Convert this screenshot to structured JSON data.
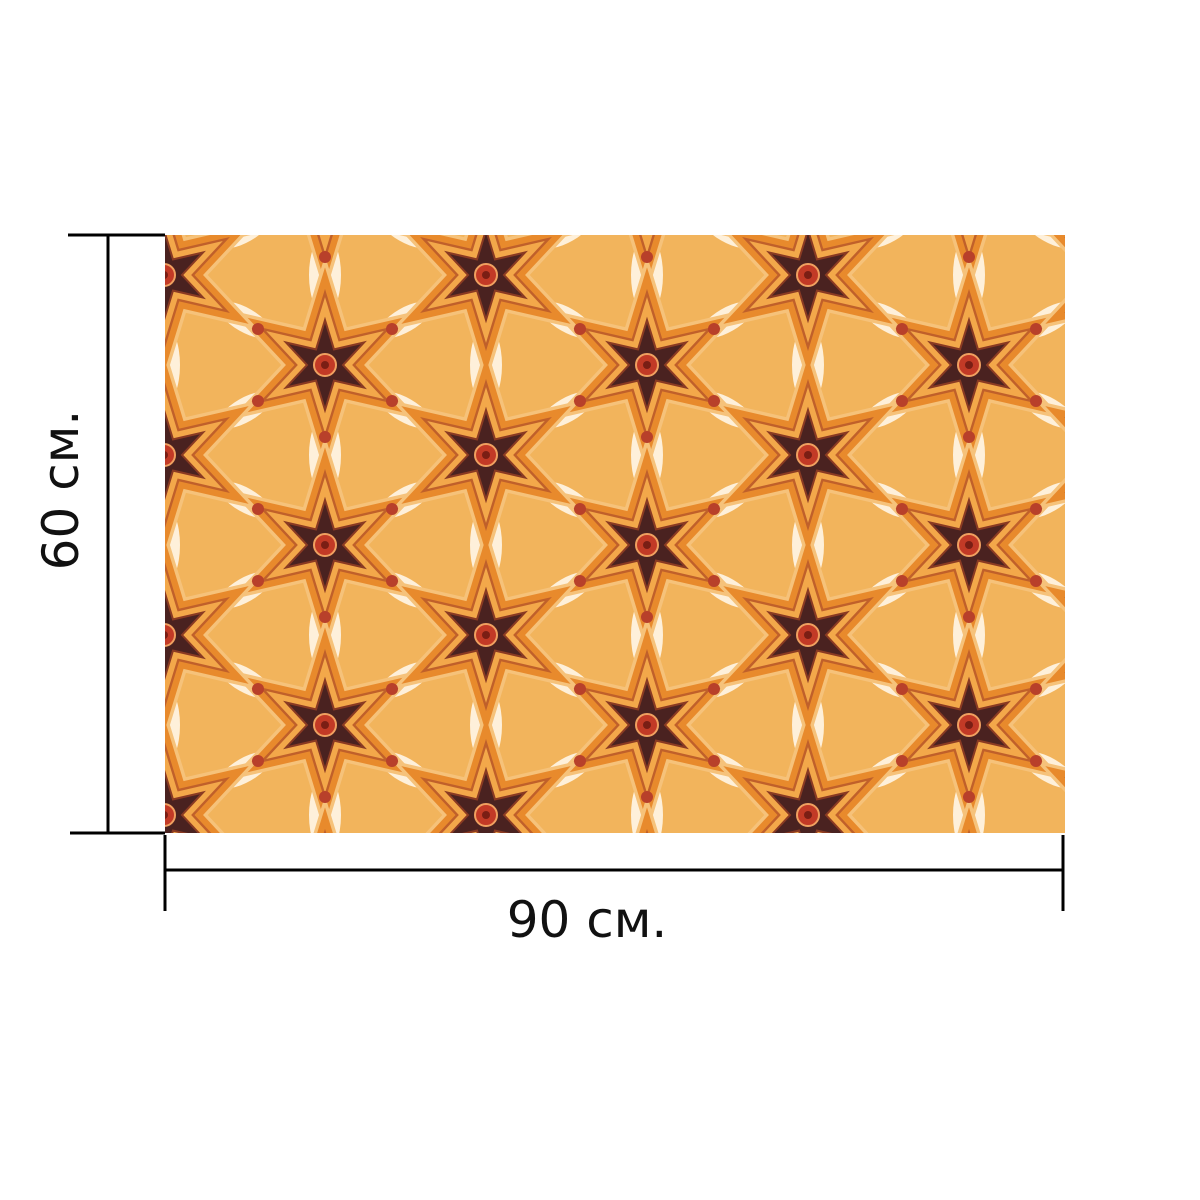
{
  "dimensions": {
    "height": "60 см.",
    "width": "90 см."
  }
}
